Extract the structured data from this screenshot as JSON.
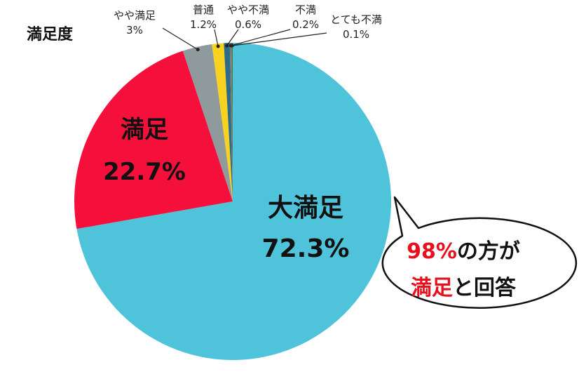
{
  "chart_data": {
    "type": "pie",
    "title": "満足度",
    "slices": [
      {
        "name": "大満足",
        "value": 72.3,
        "label": "72.3%",
        "color": "#4fc3d9"
      },
      {
        "name": "満足",
        "value": 22.7,
        "label": "22.7%",
        "color": "#f5103c"
      },
      {
        "name": "やや満足",
        "value": 3,
        "label": "3%",
        "color": "#8e9a9c"
      },
      {
        "name": "普通",
        "value": 1.2,
        "label": "1.2%",
        "color": "#f7d21e"
      },
      {
        "name": "やや不満",
        "value": 0.6,
        "label": "0.6%",
        "color": "#2e6b8a"
      },
      {
        "name": "不満",
        "value": 0.2,
        "label": "0.2%",
        "color": "#7a7a7a"
      },
      {
        "name": "とても不満",
        "value": 0.1,
        "label": "0.1%",
        "color": "#3e7e3e"
      }
    ]
  },
  "callout": {
    "line1_highlight": "98%",
    "line1_rest": "の方が",
    "line2_highlight": "満足",
    "line2_rest": "と回答",
    "highlight_color": "#e8101e"
  }
}
